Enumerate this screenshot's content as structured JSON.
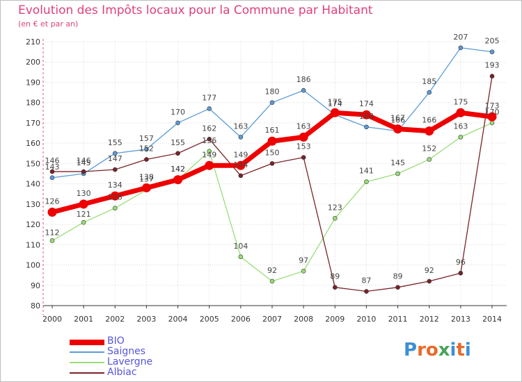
{
  "title": "Evolution des Impôts locaux pour la Commune par Habitant",
  "subtitle": "(en € et par an)",
  "logo_text": "Proxiti",
  "chart_data": {
    "type": "line",
    "title": "Evolution des Impôts locaux pour la Commune par Habitant",
    "subtitle": "(en € et par an)",
    "x": [
      "2000",
      "2001",
      "2002",
      "2003",
      "2004",
      "2005",
      "2006",
      "2007",
      "2008",
      "2009",
      "2010",
      "2011",
      "2012",
      "2013",
      "2014"
    ],
    "ylim": [
      80,
      210
    ],
    "yticks": [
      80,
      90,
      100,
      110,
      120,
      130,
      140,
      150,
      160,
      170,
      180,
      190,
      200,
      210
    ],
    "grid": true,
    "legend_position": "bottom-left",
    "series": [
      {
        "name": "BIO",
        "color": "#ee0000",
        "values": [
          126,
          130,
          134,
          138,
          142,
          149,
          149,
          161,
          163,
          175,
          174,
          167,
          166,
          175,
          173
        ]
      },
      {
        "name": "Saignes",
        "color": "#5b9bd5",
        "values": [
          143,
          145,
          155,
          157,
          170,
          177,
          163,
          180,
          186,
          174,
          168,
          166,
          185,
          207,
          205
        ]
      },
      {
        "name": "Lavergne",
        "color": "#99dd77",
        "values": [
          112,
          121,
          128,
          137,
          142,
          156,
          104,
          92,
          97,
          123,
          141,
          145,
          152,
          163,
          170
        ]
      },
      {
        "name": "Albiac",
        "color": "#7a2228",
        "values": [
          146,
          146,
          147,
          152,
          155,
          162,
          144,
          150,
          153,
          89,
          87,
          89,
          92,
          96,
          193
        ]
      }
    ]
  }
}
